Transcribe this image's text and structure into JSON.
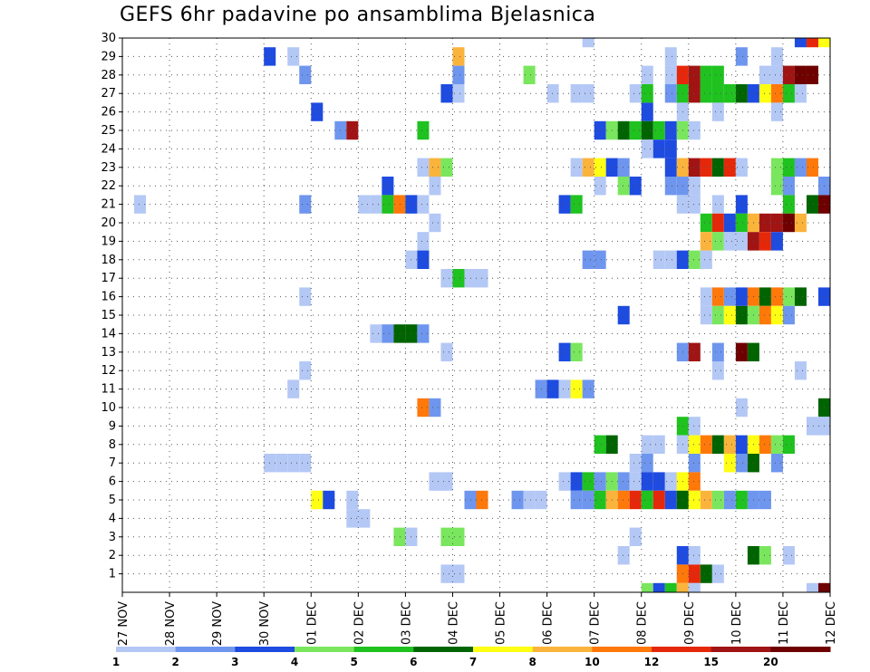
{
  "chart_data": {
    "type": "heatmap",
    "title": "GEFS 6hr padavine po ansamblima Bjelasnica",
    "xlabel": "",
    "ylabel": "",
    "x_ticks": [
      "27 NOV",
      "28 NOV",
      "29 NOV",
      "30 NOV",
      "01 DEC",
      "02 DEC",
      "03 DEC",
      "04 DEC",
      "05 DEC",
      "06 DEC",
      "07 DEC",
      "08 DEC",
      "09 DEC",
      "10 DEC",
      "11 DEC",
      "12 DEC"
    ],
    "x_range": [
      0,
      15
    ],
    "y_ticks": [
      1,
      2,
      3,
      4,
      5,
      6,
      7,
      8,
      9,
      10,
      11,
      12,
      13,
      14,
      15,
      16,
      17,
      18,
      19,
      20,
      21,
      22,
      23,
      24,
      25,
      26,
      27,
      28,
      29,
      30
    ],
    "y_range": [
      0,
      30
    ],
    "grid": "dotted",
    "legend_placement": "bottom",
    "legend_labels": [
      "1",
      "2",
      "3",
      "4",
      "5",
      "6",
      "7",
      "8",
      "10",
      "12",
      "15",
      "20"
    ],
    "legend_colors": [
      "#b4c8f5",
      "#6e96ee",
      "#1e4be0",
      "#7ae65e",
      "#1fc21f",
      "#006400",
      "#ffff14",
      "#fab43c",
      "#ff780a",
      "#e6280a",
      "#a01414",
      "#6e0000"
    ],
    "cell_width_days": 0.25,
    "cells": [
      [
        30,
        9.75,
        1
      ],
      [
        30,
        14.25,
        3
      ],
      [
        30,
        14.5,
        10
      ],
      [
        30,
        14.75,
        7
      ],
      [
        29,
        3.0,
        3
      ],
      [
        29,
        3.5,
        1
      ],
      [
        29,
        7.0,
        8
      ],
      [
        29,
        11.5,
        1
      ],
      [
        29,
        13.0,
        2
      ],
      [
        29,
        13.75,
        1
      ],
      [
        28,
        3.75,
        2
      ],
      [
        28,
        7.0,
        2
      ],
      [
        28,
        8.5,
        4
      ],
      [
        28,
        11.0,
        1
      ],
      [
        28,
        11.5,
        1
      ],
      [
        28,
        11.75,
        10
      ],
      [
        28,
        12.0,
        11
      ],
      [
        28,
        12.25,
        5
      ],
      [
        28,
        12.5,
        5
      ],
      [
        28,
        13.5,
        1
      ],
      [
        28,
        13.75,
        1
      ],
      [
        28,
        14.0,
        11
      ],
      [
        28,
        14.25,
        12
      ],
      [
        28,
        14.5,
        12
      ],
      [
        27,
        6.75,
        3
      ],
      [
        27,
        7.0,
        1
      ],
      [
        27,
        9.0,
        1
      ],
      [
        27,
        9.5,
        1
      ],
      [
        27,
        9.75,
        1
      ],
      [
        27,
        10.75,
        1
      ],
      [
        27,
        11.0,
        5
      ],
      [
        27,
        11.5,
        2
      ],
      [
        27,
        11.75,
        5
      ],
      [
        27,
        12.0,
        11
      ],
      [
        27,
        12.25,
        5
      ],
      [
        27,
        12.5,
        5
      ],
      [
        27,
        12.75,
        5
      ],
      [
        27,
        13.0,
        6
      ],
      [
        27,
        13.25,
        3
      ],
      [
        27,
        13.5,
        7
      ],
      [
        27,
        13.75,
        9
      ],
      [
        27,
        14.0,
        5
      ],
      [
        27,
        14.25,
        1
      ],
      [
        26,
        4.0,
        3
      ],
      [
        26,
        11.0,
        3
      ],
      [
        26,
        11.75,
        1
      ],
      [
        26,
        12.5,
        1
      ],
      [
        26,
        13.75,
        1
      ],
      [
        25,
        4.5,
        2
      ],
      [
        25,
        4.75,
        11
      ],
      [
        25,
        6.25,
        5
      ],
      [
        25,
        10.0,
        3
      ],
      [
        25,
        10.25,
        4
      ],
      [
        25,
        10.5,
        6
      ],
      [
        25,
        10.75,
        5
      ],
      [
        25,
        11.0,
        6
      ],
      [
        25,
        11.25,
        5
      ],
      [
        25,
        11.5,
        3
      ],
      [
        25,
        11.75,
        4
      ],
      [
        25,
        12.0,
        1
      ],
      [
        24,
        11.0,
        1
      ],
      [
        24,
        11.25,
        3
      ],
      [
        24,
        11.5,
        3
      ],
      [
        23,
        6.25,
        1
      ],
      [
        23,
        6.5,
        8
      ],
      [
        23,
        6.75,
        4
      ],
      [
        23,
        9.5,
        1
      ],
      [
        23,
        9.75,
        8
      ],
      [
        23,
        10.0,
        7
      ],
      [
        23,
        10.25,
        3
      ],
      [
        23,
        10.5,
        2
      ],
      [
        23,
        11.5,
        3
      ],
      [
        23,
        11.75,
        8
      ],
      [
        23,
        12.0,
        11
      ],
      [
        23,
        12.25,
        10
      ],
      [
        23,
        12.5,
        6
      ],
      [
        23,
        12.75,
        10
      ],
      [
        23,
        13.0,
        1
      ],
      [
        23,
        13.75,
        4
      ],
      [
        23,
        14.0,
        5
      ],
      [
        23,
        14.25,
        2
      ],
      [
        23,
        14.5,
        9
      ],
      [
        22,
        5.5,
        3
      ],
      [
        22,
        6.5,
        1
      ],
      [
        22,
        10.0,
        1
      ],
      [
        22,
        10.5,
        4
      ],
      [
        22,
        10.75,
        3
      ],
      [
        22,
        11.5,
        2
      ],
      [
        22,
        11.75,
        2
      ],
      [
        22,
        12.0,
        1
      ],
      [
        22,
        13.75,
        4
      ],
      [
        22,
        14.0,
        2
      ],
      [
        22,
        14.75,
        2
      ],
      [
        21,
        0.25,
        1
      ],
      [
        21,
        3.75,
        2
      ],
      [
        21,
        5.0,
        1
      ],
      [
        21,
        5.25,
        1
      ],
      [
        21,
        5.5,
        5
      ],
      [
        21,
        5.75,
        9
      ],
      [
        21,
        6.0,
        3
      ],
      [
        21,
        6.25,
        1
      ],
      [
        21,
        9.25,
        3
      ],
      [
        21,
        9.5,
        5
      ],
      [
        21,
        11.75,
        1
      ],
      [
        21,
        12.0,
        1
      ],
      [
        21,
        12.5,
        1
      ],
      [
        21,
        13.0,
        3
      ],
      [
        21,
        14.0,
        5
      ],
      [
        21,
        14.5,
        6
      ],
      [
        21,
        14.75,
        12
      ],
      [
        20,
        6.5,
        1
      ],
      [
        20,
        12.25,
        5
      ],
      [
        20,
        12.5,
        10
      ],
      [
        20,
        12.75,
        3
      ],
      [
        20,
        13.0,
        5
      ],
      [
        20,
        13.25,
        8
      ],
      [
        20,
        13.5,
        11
      ],
      [
        20,
        13.75,
        11
      ],
      [
        20,
        14.0,
        12
      ],
      [
        20,
        14.25,
        8
      ],
      [
        19,
        6.25,
        1
      ],
      [
        19,
        12.25,
        8
      ],
      [
        19,
        12.5,
        4
      ],
      [
        19,
        12.75,
        1
      ],
      [
        19,
        13.0,
        1
      ],
      [
        19,
        13.25,
        11
      ],
      [
        19,
        13.5,
        10
      ],
      [
        19,
        13.75,
        3
      ],
      [
        18,
        6.0,
        1
      ],
      [
        18,
        6.25,
        3
      ],
      [
        18,
        9.75,
        2
      ],
      [
        18,
        10.0,
        2
      ],
      [
        18,
        11.25,
        1
      ],
      [
        18,
        11.5,
        1
      ],
      [
        18,
        11.75,
        3
      ],
      [
        18,
        12.0,
        4
      ],
      [
        18,
        12.25,
        1
      ],
      [
        17,
        6.75,
        1
      ],
      [
        17,
        7.0,
        5
      ],
      [
        17,
        7.25,
        1
      ],
      [
        17,
        7.5,
        1
      ],
      [
        16,
        3.75,
        1
      ],
      [
        16,
        12.25,
        1
      ],
      [
        16,
        12.5,
        9
      ],
      [
        16,
        12.75,
        2
      ],
      [
        16,
        13.0,
        3
      ],
      [
        16,
        13.25,
        9
      ],
      [
        16,
        13.5,
        6
      ],
      [
        16,
        13.75,
        9
      ],
      [
        16,
        14.0,
        4
      ],
      [
        16,
        14.25,
        6
      ],
      [
        16,
        14.75,
        3
      ],
      [
        15,
        10.5,
        3
      ],
      [
        15,
        12.25,
        1
      ],
      [
        15,
        12.5,
        4
      ],
      [
        15,
        12.75,
        7
      ],
      [
        15,
        13.0,
        6
      ],
      [
        15,
        13.25,
        4
      ],
      [
        15,
        13.5,
        9
      ],
      [
        15,
        13.75,
        7
      ],
      [
        15,
        14.0,
        2
      ],
      [
        14,
        5.25,
        1
      ],
      [
        14,
        5.5,
        2
      ],
      [
        14,
        5.75,
        6
      ],
      [
        14,
        6.0,
        6
      ],
      [
        14,
        6.25,
        2
      ],
      [
        13,
        6.75,
        1
      ],
      [
        13,
        9.25,
        3
      ],
      [
        13,
        9.5,
        4
      ],
      [
        13,
        11.75,
        2
      ],
      [
        13,
        12.0,
        11
      ],
      [
        13,
        12.5,
        2
      ],
      [
        13,
        13.0,
        12
      ],
      [
        13,
        13.25,
        6
      ],
      [
        12,
        3.75,
        1
      ],
      [
        12,
        12.5,
        1
      ],
      [
        12,
        14.25,
        1
      ],
      [
        11,
        3.5,
        1
      ],
      [
        11,
        8.75,
        2
      ],
      [
        11,
        9.0,
        3
      ],
      [
        11,
        9.25,
        1
      ],
      [
        11,
        9.5,
        7
      ],
      [
        11,
        9.75,
        2
      ],
      [
        10,
        6.25,
        9
      ],
      [
        10,
        6.5,
        2
      ],
      [
        10,
        13.0,
        1
      ],
      [
        10,
        14.75,
        6
      ],
      [
        9,
        11.75,
        5
      ],
      [
        9,
        12.0,
        1
      ],
      [
        9,
        14.5,
        1
      ],
      [
        9,
        14.75,
        1
      ],
      [
        8,
        10.0,
        5
      ],
      [
        8,
        10.25,
        6
      ],
      [
        8,
        11.0,
        1
      ],
      [
        8,
        11.25,
        1
      ],
      [
        8,
        11.75,
        1
      ],
      [
        8,
        12.0,
        7
      ],
      [
        8,
        12.25,
        9
      ],
      [
        8,
        12.5,
        6
      ],
      [
        8,
        12.75,
        8
      ],
      [
        8,
        13.0,
        3
      ],
      [
        8,
        13.25,
        7
      ],
      [
        8,
        13.5,
        9
      ],
      [
        8,
        13.75,
        4
      ],
      [
        8,
        14.0,
        5
      ],
      [
        7,
        3.0,
        1
      ],
      [
        7,
        3.25,
        1
      ],
      [
        7,
        3.5,
        1
      ],
      [
        7,
        3.75,
        1
      ],
      [
        7,
        10.75,
        1
      ],
      [
        7,
        11.0,
        2
      ],
      [
        7,
        12.0,
        2
      ],
      [
        7,
        12.75,
        7
      ],
      [
        7,
        13.0,
        2
      ],
      [
        7,
        13.25,
        6
      ],
      [
        7,
        13.75,
        2
      ],
      [
        6,
        6.5,
        1
      ],
      [
        6,
        6.75,
        1
      ],
      [
        6,
        9.25,
        1
      ],
      [
        6,
        9.5,
        3
      ],
      [
        6,
        9.75,
        5
      ],
      [
        6,
        10.0,
        2
      ],
      [
        6,
        10.25,
        4
      ],
      [
        6,
        10.5,
        2
      ],
      [
        6,
        10.75,
        1
      ],
      [
        6,
        11.0,
        3
      ],
      [
        6,
        11.25,
        3
      ],
      [
        6,
        11.5,
        1
      ],
      [
        6,
        11.75,
        7
      ],
      [
        6,
        12.0,
        9
      ],
      [
        5,
        4.0,
        7
      ],
      [
        5,
        4.25,
        3
      ],
      [
        5,
        4.75,
        1
      ],
      [
        5,
        7.25,
        2
      ],
      [
        5,
        7.5,
        9
      ],
      [
        5,
        8.25,
        2
      ],
      [
        5,
        8.5,
        1
      ],
      [
        5,
        8.75,
        1
      ],
      [
        5,
        9.5,
        2
      ],
      [
        5,
        9.75,
        2
      ],
      [
        5,
        10.0,
        5
      ],
      [
        5,
        10.25,
        8
      ],
      [
        5,
        10.5,
        9
      ],
      [
        5,
        10.75,
        10
      ],
      [
        5,
        11.0,
        5
      ],
      [
        5,
        11.25,
        10
      ],
      [
        5,
        11.5,
        3
      ],
      [
        5,
        11.75,
        6
      ],
      [
        5,
        12.0,
        7
      ],
      [
        5,
        12.25,
        8
      ],
      [
        5,
        12.5,
        4
      ],
      [
        5,
        12.75,
        2
      ],
      [
        5,
        13.0,
        5
      ],
      [
        5,
        13.25,
        2
      ],
      [
        5,
        13.5,
        2
      ],
      [
        4,
        4.75,
        1
      ],
      [
        4,
        5.0,
        1
      ],
      [
        3,
        5.75,
        4
      ],
      [
        3,
        6.0,
        1
      ],
      [
        3,
        6.75,
        4
      ],
      [
        3,
        7.0,
        4
      ],
      [
        3,
        10.75,
        1
      ],
      [
        2,
        10.5,
        1
      ],
      [
        2,
        11.75,
        3
      ],
      [
        2,
        12.0,
        1
      ],
      [
        2,
        13.25,
        6
      ],
      [
        2,
        13.5,
        4
      ],
      [
        2,
        14.0,
        1
      ],
      [
        1,
        6.75,
        1
      ],
      [
        1,
        7.0,
        1
      ],
      [
        1,
        11.75,
        9
      ],
      [
        1,
        12.0,
        10
      ],
      [
        1,
        12.25,
        6
      ],
      [
        1,
        12.5,
        1
      ],
      [
        0,
        11.0,
        4
      ],
      [
        0,
        11.25,
        3
      ],
      [
        0,
        11.5,
        5
      ],
      [
        0,
        11.75,
        8
      ],
      [
        0,
        12.0,
        1
      ],
      [
        0,
        14.5,
        1
      ],
      [
        0,
        14.75,
        12
      ]
    ]
  }
}
